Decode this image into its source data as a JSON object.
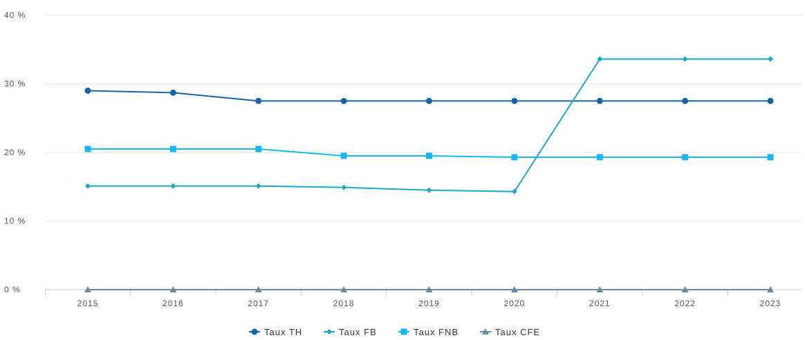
{
  "chart_data": {
    "type": "line",
    "title": "",
    "xlabel": "",
    "ylabel": "",
    "categories": [
      "2015",
      "2016",
      "2017",
      "2018",
      "2019",
      "2020",
      "2021",
      "2022",
      "2023"
    ],
    "y_ticks": [
      "0 %",
      "10 %",
      "20 %",
      "30 %",
      "40 %"
    ],
    "ylim": [
      0,
      40
    ],
    "grid": "horizontal",
    "legend_position": "bottom-center",
    "series": [
      {
        "name": "Taux TH",
        "color": "#1464a5",
        "marker": "circle",
        "values": [
          29.0,
          28.7,
          27.5,
          27.5,
          27.5,
          27.5,
          27.5,
          27.5,
          27.5
        ]
      },
      {
        "name": "Taux FB",
        "color": "#1ea8c0",
        "marker": "diamond",
        "values": [
          15.1,
          15.1,
          15.1,
          14.9,
          14.5,
          14.3,
          33.6,
          33.6,
          33.6
        ]
      },
      {
        "name": "Taux FNB",
        "color": "#19b5f0",
        "marker": "square",
        "values": [
          20.5,
          20.5,
          20.5,
          19.5,
          19.5,
          19.3,
          19.3,
          19.3,
          19.3
        ]
      },
      {
        "name": "Taux CFE",
        "color": "#6a8aa3",
        "marker": "triangle",
        "values": [
          0,
          0,
          0,
          0,
          0,
          0,
          0,
          0,
          0
        ]
      }
    ]
  }
}
